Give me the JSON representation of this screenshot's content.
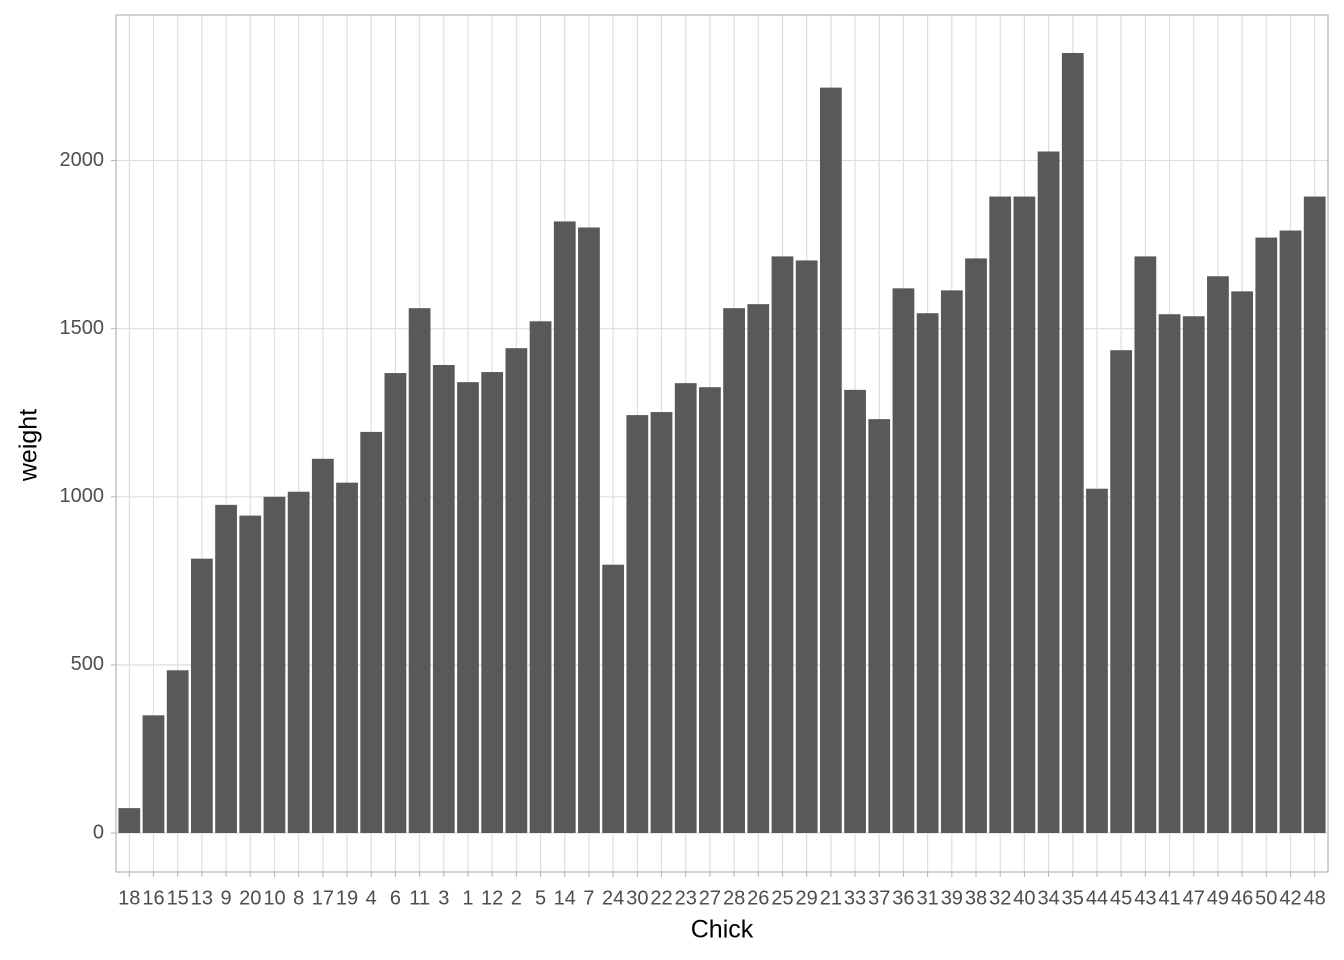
{
  "chart_data": {
    "type": "bar",
    "x_label": "Chick",
    "y_label": "weight",
    "categories": [
      "18",
      "16",
      "15",
      "13",
      "9",
      "20",
      "10",
      "8",
      "17",
      "19",
      "4",
      "6",
      "11",
      "3",
      "1",
      "12",
      "2",
      "5",
      "14",
      "7",
      "24",
      "30",
      "22",
      "23",
      "27",
      "28",
      "26",
      "25",
      "29",
      "21",
      "33",
      "37",
      "36",
      "31",
      "39",
      "38",
      "32",
      "40",
      "34",
      "35",
      "44",
      "45",
      "43",
      "41",
      "47",
      "49",
      "46",
      "50",
      "42",
      "48"
    ],
    "values": [
      74,
      350,
      484,
      816,
      976,
      944,
      1000,
      1015,
      1113,
      1042,
      1193,
      1368,
      1561,
      1392,
      1341,
      1371,
      1442,
      1522,
      1819,
      1801,
      798,
      1243,
      1252,
      1338,
      1326,
      1561,
      1573,
      1715,
      1703,
      2217,
      1318,
      1231,
      1620,
      1546,
      1614,
      1709,
      1893,
      1893,
      2027,
      2320,
      1024,
      1436,
      1715,
      1543,
      1537,
      1656,
      1611,
      1771,
      1792,
      1893
    ],
    "color": "#595959",
    "ylim": [
      -116,
      2433
    ],
    "yticks": [
      0,
      500,
      1000,
      1500,
      2000
    ],
    "grid": true
  }
}
